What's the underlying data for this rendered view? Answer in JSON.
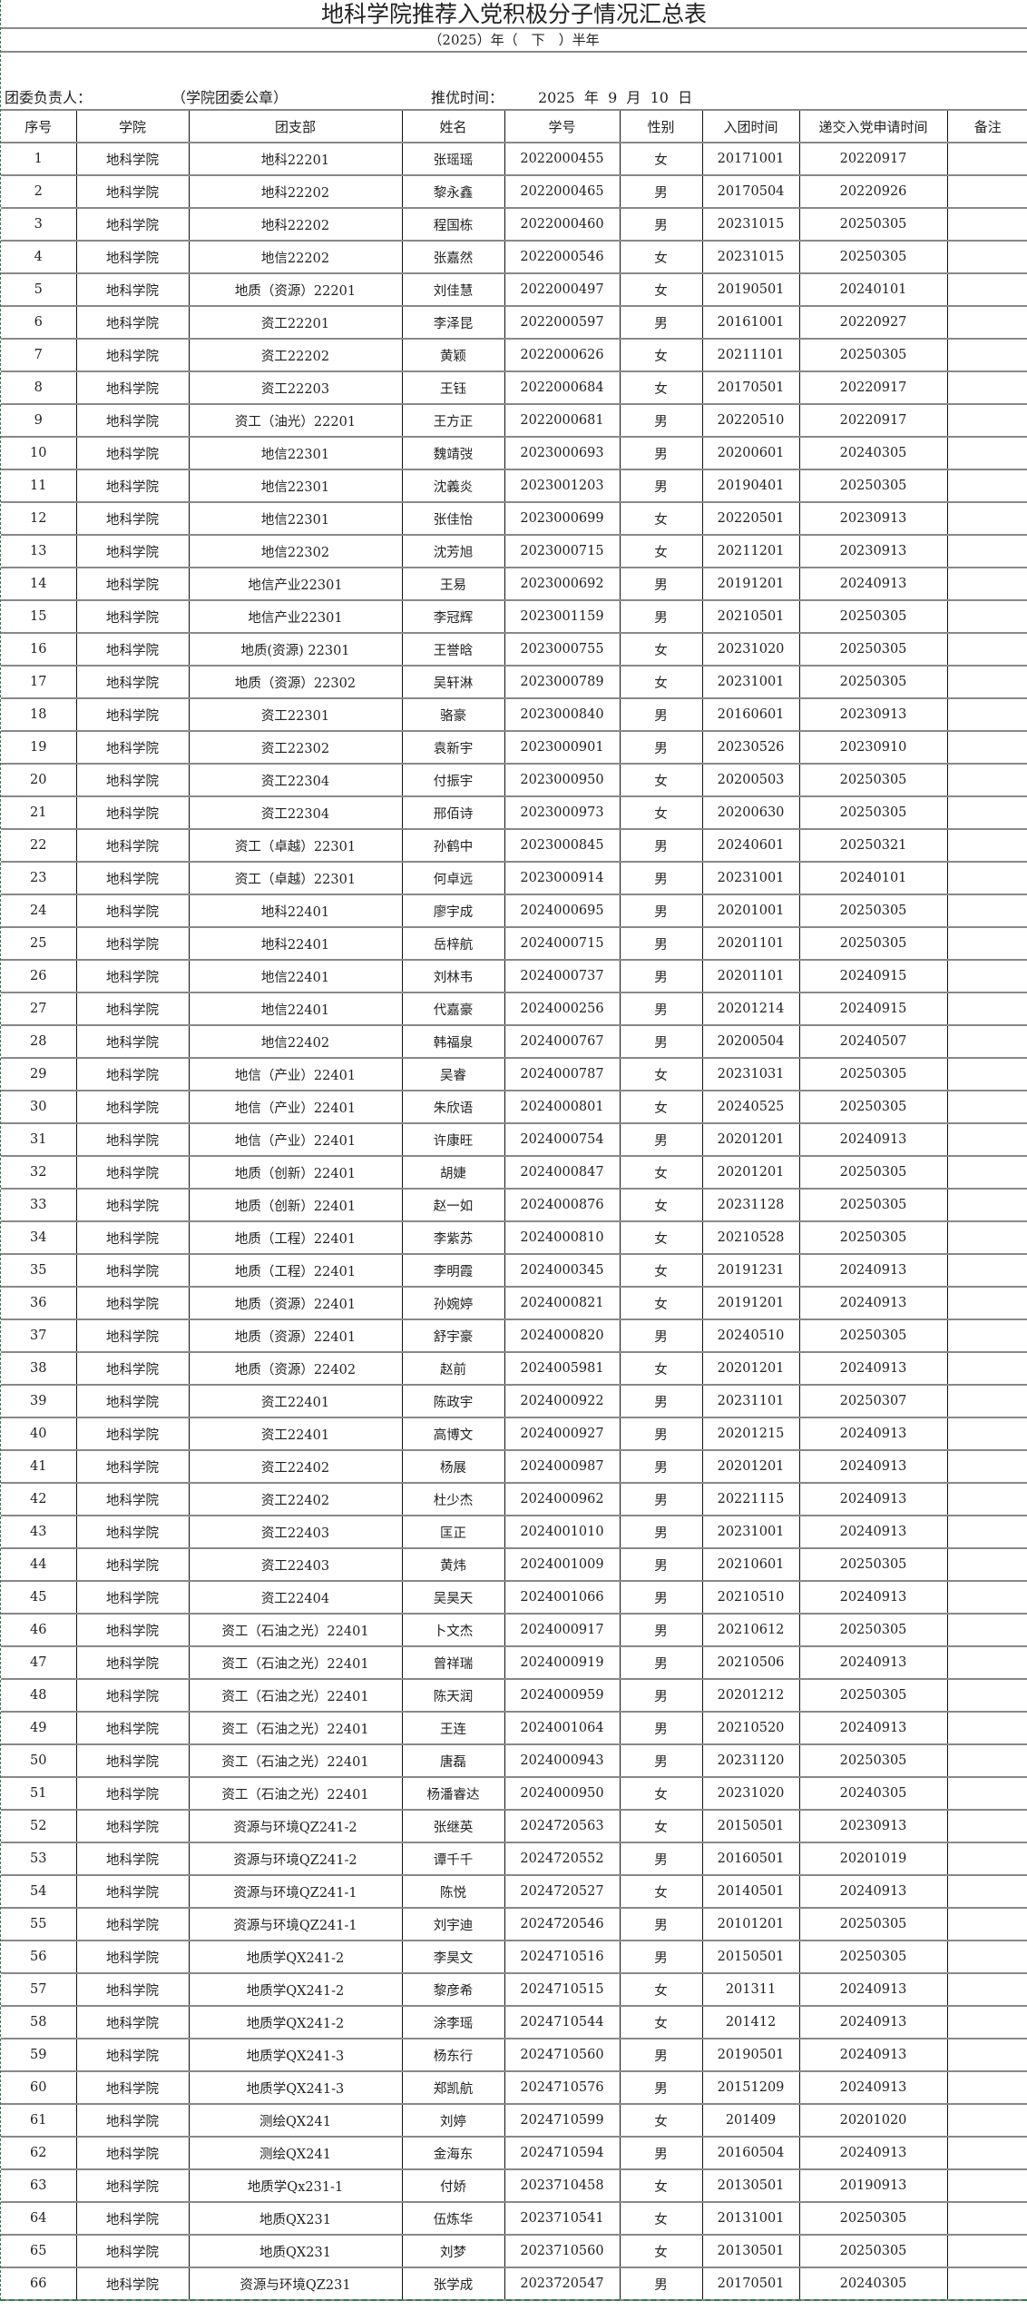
{
  "title": "地科学院推荐入党积极分子情况汇总表",
  "subtitle": "（2025）年（　下　）半年",
  "info": {
    "leader_label": "团委负责人：",
    "seal_label": "（学院团委公章）",
    "date_label": "推优时间：",
    "date_value": "2025  年  9  月  10  日"
  },
  "columns": [
    "序号",
    "学院",
    "团支部",
    "姓名",
    "学号",
    "性别",
    "入团时间",
    "递交入党申请时间",
    "备注"
  ],
  "rows": [
    [
      "1",
      "地科学院",
      "地科22201",
      "张瑶瑶",
      "2022000455",
      "女",
      "20171001",
      "20220917",
      ""
    ],
    [
      "2",
      "地科学院",
      "地科22202",
      "黎永鑫",
      "2022000465",
      "男",
      "20170504",
      "20220926",
      ""
    ],
    [
      "3",
      "地科学院",
      "地科22202",
      "程国栋",
      "2022000460",
      "男",
      "20231015",
      "20250305",
      ""
    ],
    [
      "4",
      "地科学院",
      "地信22202",
      "张嘉然",
      "2022000546",
      "女",
      "20231015",
      "20250305",
      ""
    ],
    [
      "5",
      "地科学院",
      "地质（资源）22201",
      "刘佳慧",
      "2022000497",
      "女",
      "20190501",
      "20240101",
      ""
    ],
    [
      "6",
      "地科学院",
      "资工22201",
      "李泽昆",
      "2022000597",
      "男",
      "20161001",
      "20220927",
      ""
    ],
    [
      "7",
      "地科学院",
      "资工22202",
      "黄颖",
      "2022000626",
      "女",
      "20211101",
      "20250305",
      ""
    ],
    [
      "8",
      "地科学院",
      "资工22203",
      "王钰",
      "2022000684",
      "女",
      "20170501",
      "20220917",
      ""
    ],
    [
      "9",
      "地科学院",
      "资工（油光）22201",
      "王方正",
      "2022000681",
      "男",
      "20220510",
      "20220917",
      ""
    ],
    [
      "10",
      "地科学院",
      "地信22301",
      "魏靖弢",
      "2023000693",
      "男",
      "20200601",
      "20240305",
      ""
    ],
    [
      "11",
      "地科学院",
      "地信22301",
      "沈義炎",
      "2023001203",
      "男",
      "20190401",
      "20250305",
      ""
    ],
    [
      "12",
      "地科学院",
      "地信22301",
      "张佳怡",
      "2023000699",
      "女",
      "20220501",
      "20230913",
      ""
    ],
    [
      "13",
      "地科学院",
      "地信22302",
      "沈芳旭",
      "2023000715",
      "女",
      "20211201",
      "20230913",
      ""
    ],
    [
      "14",
      "地科学院",
      "地信产业22301",
      "王易",
      "2023000692",
      "男",
      "20191201",
      "20240913",
      ""
    ],
    [
      "15",
      "地科学院",
      "地信产业22301",
      "李冠辉",
      "2023001159",
      "男",
      "20210501",
      "20250305",
      ""
    ],
    [
      "16",
      "地科学院",
      "地质(资源) 22301",
      "王誉晗",
      "2023000755",
      "女",
      "20231020",
      "20250305",
      ""
    ],
    [
      "17",
      "地科学院",
      "地质（资源）22302",
      "吴轩淋",
      "2023000789",
      "女",
      "20231001",
      "20250305",
      ""
    ],
    [
      "18",
      "地科学院",
      "资工22301",
      "骆豪",
      "2023000840",
      "男",
      "20160601",
      "20230913",
      ""
    ],
    [
      "19",
      "地科学院",
      "资工22302",
      "袁新宇",
      "2023000901",
      "男",
      "20230526",
      "20230910",
      ""
    ],
    [
      "20",
      "地科学院",
      "资工22304",
      "付振宇",
      "2023000950",
      "女",
      "20200503",
      "20250305",
      ""
    ],
    [
      "21",
      "地科学院",
      "资工22304",
      "邢佰诗",
      "2023000973",
      "女",
      "20200630",
      "20250305",
      ""
    ],
    [
      "22",
      "地科学院",
      "资工（卓越）22301",
      "孙鹤中",
      "2023000845",
      "男",
      "20240601",
      "20250321",
      ""
    ],
    [
      "23",
      "地科学院",
      "资工（卓越）22301",
      "何卓远",
      "2023000914",
      "男",
      "20231001",
      "20240101",
      ""
    ],
    [
      "24",
      "地科学院",
      "地科22401",
      "廖宇成",
      "2024000695",
      "男",
      "20201001",
      "20250305",
      ""
    ],
    [
      "25",
      "地科学院",
      "地科22401",
      "岳梓航",
      "2024000715",
      "男",
      "20201101",
      "20250305",
      ""
    ],
    [
      "26",
      "地科学院",
      "地信22401",
      "刘林韦",
      "2024000737",
      "男",
      "20201101",
      "20240915",
      ""
    ],
    [
      "27",
      "地科学院",
      "地信22401",
      "代嘉豪",
      "2024000256",
      "男",
      "20201214",
      "20240915",
      ""
    ],
    [
      "28",
      "地科学院",
      "地信22402",
      "韩福泉",
      "2024000767",
      "男",
      "20200504",
      "20240507",
      ""
    ],
    [
      "29",
      "地科学院",
      "地信（产业）22401",
      "吴睿",
      "2024000787",
      "女",
      "20231031",
      "20250305",
      ""
    ],
    [
      "30",
      "地科学院",
      "地信（产业）22401",
      "朱欣语",
      "2024000801",
      "女",
      "20240525",
      "20250305",
      ""
    ],
    [
      "31",
      "地科学院",
      "地信（产业）22401",
      "许康旺",
      "2024000754",
      "男",
      "20201201",
      "20240913",
      ""
    ],
    [
      "32",
      "地科学院",
      "地质（创新）22401",
      "胡婕",
      "2024000847",
      "女",
      "20201201",
      "20250305",
      ""
    ],
    [
      "33",
      "地科学院",
      "地质（创新）22401",
      "赵一如",
      "2024000876",
      "女",
      "20231128",
      "20250305",
      ""
    ],
    [
      "34",
      "地科学院",
      "地质（工程）22401",
      "李紫苏",
      "2024000810",
      "女",
      "20210528",
      "20250305",
      ""
    ],
    [
      "35",
      "地科学院",
      "地质（工程）22401",
      "李明霞",
      "2024000345",
      "女",
      "20191231",
      "20240913",
      ""
    ],
    [
      "36",
      "地科学院",
      "地质（资源）22401",
      "孙婉婷",
      "2024000821",
      "女",
      "20191201",
      "20240913",
      ""
    ],
    [
      "37",
      "地科学院",
      "地质（资源）22401",
      "舒宇豪",
      "2024000820",
      "男",
      "20240510",
      "20250305",
      ""
    ],
    [
      "38",
      "地科学院",
      "地质（资源）22402",
      "赵前",
      "2024005981",
      "女",
      "20201201",
      "20240913",
      ""
    ],
    [
      "39",
      "地科学院",
      "资工22401",
      "陈政宇",
      "2024000922",
      "男",
      "20231101",
      "20250307",
      ""
    ],
    [
      "40",
      "地科学院",
      "资工22401",
      "高博文",
      "2024000927",
      "男",
      "20201215",
      "20240913",
      ""
    ],
    [
      "41",
      "地科学院",
      "资工22402",
      "杨展",
      "2024000987",
      "男",
      "20201201",
      "20240913",
      ""
    ],
    [
      "42",
      "地科学院",
      "资工22402",
      "杜少杰",
      "2024000962",
      "男",
      "20221115",
      "20240913",
      ""
    ],
    [
      "43",
      "地科学院",
      "资工22403",
      "匡正",
      "2024001010",
      "男",
      "20231001",
      "20240913",
      ""
    ],
    [
      "44",
      "地科学院",
      "资工22403",
      "黄炜",
      "2024001009",
      "男",
      "20210601",
      "20250305",
      ""
    ],
    [
      "45",
      "地科学院",
      "资工22404",
      "吴昊天",
      "2024001066",
      "男",
      "20210510",
      "20240913",
      ""
    ],
    [
      "46",
      "地科学院",
      "资工（石油之光）22401",
      "卜文杰",
      "2024000917",
      "男",
      "20210612",
      "20250305",
      ""
    ],
    [
      "47",
      "地科学院",
      "资工（石油之光）22401",
      "曾祥瑞",
      "2024000919",
      "男",
      "20210506",
      "20240913",
      ""
    ],
    [
      "48",
      "地科学院",
      "资工（石油之光）22401",
      "陈天润",
      "2024000959",
      "男",
      "20201212",
      "20250305",
      ""
    ],
    [
      "49",
      "地科学院",
      "资工（石油之光）22401",
      "王连",
      "2024001064",
      "男",
      "20210520",
      "20240913",
      ""
    ],
    [
      "50",
      "地科学院",
      "资工（石油之光）22401",
      "唐磊",
      "2024000943",
      "男",
      "20231120",
      "20250305",
      ""
    ],
    [
      "51",
      "地科学院",
      "资工（石油之光）22401",
      "杨潘睿达",
      "2024000950",
      "女",
      "20231020",
      "20240305",
      ""
    ],
    [
      "52",
      "地科学院",
      "资源与环境QZ241-2",
      "张继英",
      "2024720563",
      "女",
      "20150501",
      "20230913",
      ""
    ],
    [
      "53",
      "地科学院",
      "资源与环境QZ241-2",
      "谭千千",
      "2024720552",
      "男",
      "20160501",
      "20201019",
      ""
    ],
    [
      "54",
      "地科学院",
      "资源与环境QZ241-1",
      "陈悦",
      "2024720527",
      "女",
      "20140501",
      "20240913",
      ""
    ],
    [
      "55",
      "地科学院",
      "资源与环境QZ241-1",
      "刘宇迪",
      "2024720546",
      "男",
      "20101201",
      "20250305",
      ""
    ],
    [
      "56",
      "地科学院",
      "地质学QX241-2",
      "李昊文",
      "2024710516",
      "男",
      "20150501",
      "20250305",
      ""
    ],
    [
      "57",
      "地科学院",
      "地质学QX241-2",
      "黎彦希",
      "2024710515",
      "女",
      "201311",
      "20240913",
      ""
    ],
    [
      "58",
      "地科学院",
      "地质学QX241-2",
      "涂李瑶",
      "2024710544",
      "女",
      "201412",
      "20240913",
      ""
    ],
    [
      "59",
      "地科学院",
      "地质学QX241-3",
      "杨东行",
      "2024710560",
      "男",
      "20190501",
      "20240913",
      ""
    ],
    [
      "60",
      "地科学院",
      "地质学QX241-3",
      "郑凯航",
      "2024710576",
      "男",
      "20151209",
      "20240913",
      ""
    ],
    [
      "61",
      "地科学院",
      "测绘QX241",
      "刘婷",
      "2024710599",
      "女",
      "201409",
      "20201020",
      ""
    ],
    [
      "62",
      "地科学院",
      "测绘QX241",
      "金海东",
      "2024710594",
      "男",
      "20160504",
      "20240913",
      ""
    ],
    [
      "63",
      "地科学院",
      "地质学Qx231-1",
      "付娇",
      "2023710458",
      "女",
      "20130501",
      "20190913",
      ""
    ],
    [
      "64",
      "地科学院",
      "地质QX231",
      "伍炼华",
      "2023710541",
      "女",
      "20131001",
      "20250305",
      ""
    ],
    [
      "65",
      "地科学院",
      "地质QX231",
      "刘梦",
      "2023710560",
      "女",
      "20130501",
      "20250305",
      ""
    ],
    [
      "66",
      "地科学院",
      "资源与环境QZ231",
      "张学成",
      "2023720547",
      "男",
      "20170501",
      "20240305",
      ""
    ]
  ]
}
